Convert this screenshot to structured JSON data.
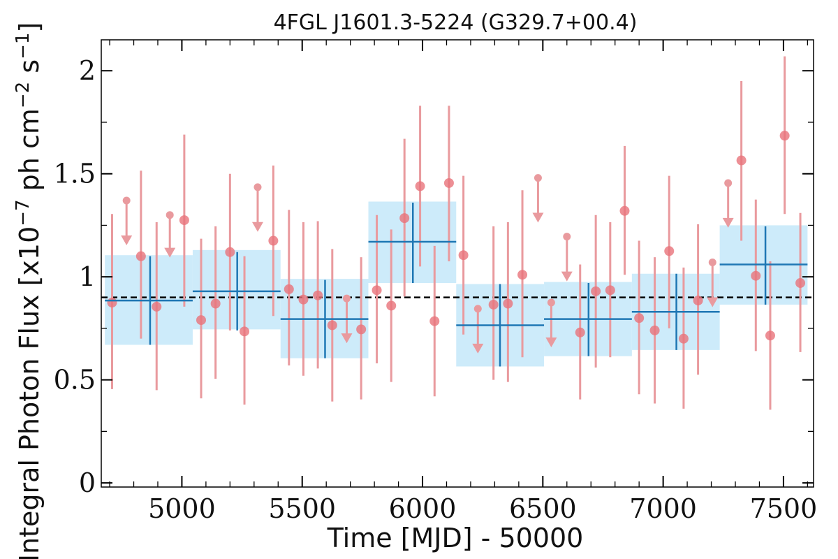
{
  "chart_data": {
    "type": "scatter",
    "title": "4FGL J1601.3-5224 (G329.7+00.4)",
    "xlabel": "Time [MJD] - 50000",
    "ylabel_parts": {
      "prefix": "Integral Photon Flux [x10",
      "exp1": "−7",
      "middle": " ph cm",
      "exp2": "−2",
      "middle2": " s",
      "exp3": "−1",
      "suffix": "]"
    },
    "xlim": [
      4665,
      7625
    ],
    "ylim": [
      -0.02,
      2.15
    ],
    "x_ticks": [
      5000,
      5500,
      6000,
      6500,
      7000,
      7500
    ],
    "x_tick_labels": [
      "5000",
      "5500",
      "6000",
      "6500",
      "7000",
      "7500"
    ],
    "y_ticks": [
      0,
      0.5,
      1,
      1.5,
      2
    ],
    "y_tick_labels": [
      "0",
      "0.5",
      "1",
      "1.5",
      "2"
    ],
    "mean_flux": 0.9,
    "colors": {
      "point": "#e8737b",
      "error_bar": "#e99a9e",
      "bin_line": "#1f77b4",
      "bin_band": "#cdebfa",
      "mean_line": "#000000"
    },
    "bins": [
      {
        "x_start": 4680,
        "x_end": 5045,
        "x_center": 4868,
        "flux": 0.885,
        "err_low": 0.67,
        "err_high": 1.1,
        "band_low": 0.67,
        "band_high": 1.105
      },
      {
        "x_start": 5045,
        "x_end": 5410,
        "x_center": 5230,
        "flux": 0.93,
        "err_low": 0.74,
        "err_high": 1.12,
        "band_low": 0.745,
        "band_high": 1.13
      },
      {
        "x_start": 5410,
        "x_end": 5775,
        "x_center": 5595,
        "flux": 0.795,
        "err_low": 0.605,
        "err_high": 0.985,
        "band_low": 0.605,
        "band_high": 0.99
      },
      {
        "x_start": 5775,
        "x_end": 6140,
        "x_center": 5960,
        "flux": 1.17,
        "err_low": 0.97,
        "err_high": 1.36,
        "band_low": 0.97,
        "band_high": 1.365
      },
      {
        "x_start": 6140,
        "x_end": 6505,
        "x_center": 6322,
        "flux": 0.765,
        "err_low": 0.565,
        "err_high": 0.965,
        "band_low": 0.565,
        "band_high": 0.965
      },
      {
        "x_start": 6505,
        "x_end": 6870,
        "x_center": 6690,
        "flux": 0.795,
        "err_low": 0.615,
        "err_high": 0.97,
        "band_low": 0.615,
        "band_high": 0.975
      },
      {
        "x_start": 6870,
        "x_end": 7235,
        "x_center": 7055,
        "flux": 0.83,
        "err_low": 0.645,
        "err_high": 1.015,
        "band_low": 0.645,
        "band_high": 1.015
      },
      {
        "x_start": 7235,
        "x_end": 7600,
        "x_center": 7425,
        "flux": 1.06,
        "err_low": 0.865,
        "err_high": 1.245,
        "band_low": 0.865,
        "band_high": 1.25
      }
    ],
    "points": [
      {
        "x": 4710,
        "y": 0.875,
        "err_low": 0.455,
        "err_high": 1.305
      },
      {
        "x": 4830,
        "y": 1.1,
        "err_low": 0.7,
        "err_high": 1.515
      },
      {
        "x": 4895,
        "y": 0.855,
        "err_low": 0.45,
        "err_high": 1.265
      },
      {
        "x": 5010,
        "y": 1.275,
        "err_low": 0.855,
        "err_high": 1.69
      },
      {
        "x": 5080,
        "y": 0.79,
        "err_low": 0.41,
        "err_high": 1.185
      },
      {
        "x": 5140,
        "y": 0.87,
        "err_low": 0.505,
        "err_high": 1.245
      },
      {
        "x": 5200,
        "y": 1.12,
        "err_low": 0.74,
        "err_high": 1.5
      },
      {
        "x": 5260,
        "y": 0.735,
        "err_low": 0.38,
        "err_high": 1.1
      },
      {
        "x": 5380,
        "y": 1.175,
        "err_low": 0.81,
        "err_high": 1.54
      },
      {
        "x": 5445,
        "y": 0.94,
        "err_low": 0.57,
        "err_high": 1.325
      },
      {
        "x": 5505,
        "y": 0.89,
        "err_low": 0.52,
        "err_high": 1.265
      },
      {
        "x": 5565,
        "y": 0.91,
        "err_low": 0.555,
        "err_high": 1.27
      },
      {
        "x": 5625,
        "y": 0.765,
        "err_low": 0.395,
        "err_high": 1.135
      },
      {
        "x": 5745,
        "y": 0.745,
        "err_low": 0.405,
        "err_high": 1.095
      },
      {
        "x": 5810,
        "y": 0.935,
        "err_low": 0.58,
        "err_high": 1.3
      },
      {
        "x": 5870,
        "y": 0.86,
        "err_low": 0.49,
        "err_high": 1.23
      },
      {
        "x": 5925,
        "y": 1.285,
        "err_low": 0.905,
        "err_high": 1.67
      },
      {
        "x": 5990,
        "y": 1.44,
        "err_low": 1.05,
        "err_high": 1.83
      },
      {
        "x": 6050,
        "y": 0.785,
        "err_low": 0.42,
        "err_high": 1.15
      },
      {
        "x": 6110,
        "y": 1.455,
        "err_low": 1.075,
        "err_high": 1.83
      },
      {
        "x": 6170,
        "y": 1.105,
        "err_low": 0.72,
        "err_high": 1.49
      },
      {
        "x": 6295,
        "y": 0.865,
        "err_low": 0.5,
        "err_high": 1.245
      },
      {
        "x": 6355,
        "y": 0.87,
        "err_low": 0.49,
        "err_high": 1.265
      },
      {
        "x": 6415,
        "y": 1.01,
        "err_low": 0.61,
        "err_high": 1.42
      },
      {
        "x": 6655,
        "y": 0.73,
        "err_low": 0.405,
        "err_high": 1.06
      },
      {
        "x": 6720,
        "y": 0.93,
        "err_low": 0.56,
        "err_high": 1.3
      },
      {
        "x": 6780,
        "y": 0.935,
        "err_low": 0.61,
        "err_high": 1.265
      },
      {
        "x": 6840,
        "y": 1.32,
        "err_low": 1.01,
        "err_high": 1.635
      },
      {
        "x": 6900,
        "y": 0.8,
        "err_low": 0.43,
        "err_high": 1.175
      },
      {
        "x": 6965,
        "y": 0.74,
        "err_low": 0.385,
        "err_high": 1.095
      },
      {
        "x": 7025,
        "y": 1.125,
        "err_low": 0.75,
        "err_high": 1.49
      },
      {
        "x": 7085,
        "y": 0.7,
        "err_low": 0.36,
        "err_high": 1.045
      },
      {
        "x": 7145,
        "y": 0.885,
        "err_low": 0.525,
        "err_high": 1.255
      },
      {
        "x": 7325,
        "y": 1.565,
        "err_low": 1.175,
        "err_high": 1.95
      },
      {
        "x": 7385,
        "y": 1.005,
        "err_low": 0.64,
        "err_high": 1.375
      },
      {
        "x": 7445,
        "y": 0.715,
        "err_low": 0.355,
        "err_high": 1.075
      },
      {
        "x": 7505,
        "y": 1.685,
        "err_low": 1.305,
        "err_high": 2.07
      },
      {
        "x": 7570,
        "y": 0.97,
        "err_low": 0.635,
        "err_high": 1.31
      }
    ],
    "upper_limits": [
      {
        "x": 4770,
        "y": 1.37,
        "arrow_to": 1.16
      },
      {
        "x": 4950,
        "y": 1.3,
        "arrow_to": 1.1
      },
      {
        "x": 5315,
        "y": 1.435,
        "arrow_to": 1.225
      },
      {
        "x": 5685,
        "y": 0.895,
        "arrow_to": 0.685
      },
      {
        "x": 6230,
        "y": 0.845,
        "arrow_to": 0.635
      },
      {
        "x": 6480,
        "y": 1.48,
        "arrow_to": 1.27
      },
      {
        "x": 6535,
        "y": 0.875,
        "arrow_to": 0.665
      },
      {
        "x": 6600,
        "y": 1.195,
        "arrow_to": 0.985
      },
      {
        "x": 7205,
        "y": 1.07,
        "arrow_to": 0.86
      },
      {
        "x": 7270,
        "y": 1.455,
        "arrow_to": 1.245
      }
    ]
  }
}
